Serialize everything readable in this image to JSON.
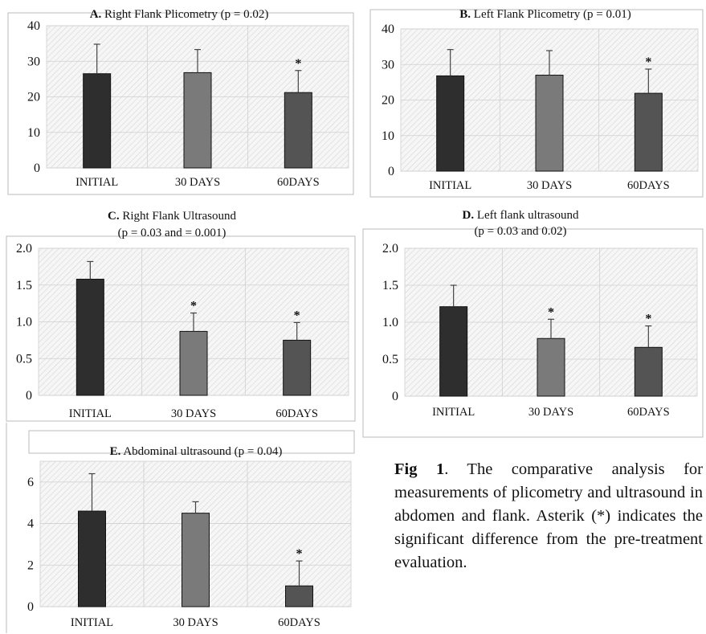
{
  "chart_data": [
    {
      "type": "bar",
      "title_bold": "A.",
      "title_text": " Right Flank Plicometry (p = 0.02)",
      "categories": [
        "INITIAL",
        "30 DAYS",
        "60DAYS"
      ],
      "values": [
        26.5,
        26.8,
        21.2
      ],
      "errors": [
        8.3,
        6.5,
        6.2
      ],
      "significant": [
        false,
        false,
        true
      ],
      "ylim": [
        0,
        40
      ],
      "yticks": [
        "0",
        "10",
        "20",
        "30",
        "40"
      ],
      "ytick_values": [
        0,
        10,
        20,
        30,
        40
      ],
      "grid": true,
      "colors": [
        "#2e2e2e",
        "#7a7a7a",
        "#545454"
      ]
    },
    {
      "type": "bar",
      "title_bold": "B.",
      "title_text": " Left Flank Plicometry (p = 0.01)",
      "categories": [
        "INITIAL",
        "30 DAYS",
        "60DAYS"
      ],
      "values": [
        26.8,
        27.0,
        21.9
      ],
      "errors": [
        7.4,
        6.9,
        6.8
      ],
      "significant": [
        false,
        false,
        true
      ],
      "ylim": [
        0,
        40
      ],
      "yticks": [
        "0",
        "10",
        "20",
        "30",
        "40"
      ],
      "ytick_values": [
        0,
        10,
        20,
        30,
        40
      ],
      "grid": true,
      "colors": [
        "#2e2e2e",
        "#7a7a7a",
        "#545454"
      ]
    },
    {
      "type": "bar",
      "title_bold": "C.",
      "title_text": " Right Flank Ultrasound",
      "title_line2": "(p = 0.03 and = 0.001)",
      "categories": [
        "INITIAL",
        "30 DAYS",
        "60DAYS"
      ],
      "values": [
        1.58,
        0.87,
        0.75
      ],
      "errors": [
        0.24,
        0.25,
        0.24
      ],
      "significant": [
        false,
        true,
        true
      ],
      "ylim": [
        0,
        2.0
      ],
      "yticks": [
        "0",
        "0.5",
        "1.0",
        "1.5",
        "2.0"
      ],
      "ytick_values": [
        0,
        0.5,
        1.0,
        1.5,
        2.0
      ],
      "grid": true,
      "colors": [
        "#2e2e2e",
        "#7a7a7a",
        "#545454"
      ]
    },
    {
      "type": "bar",
      "title_bold": "D.",
      "title_text": " Left flank ultrasound",
      "title_line2": "(p = 0.03 and 0.02)",
      "categories": [
        "INITIAL",
        "30 DAYS",
        "60DAYS"
      ],
      "values": [
        1.21,
        0.78,
        0.66
      ],
      "errors": [
        0.29,
        0.26,
        0.29
      ],
      "significant": [
        false,
        true,
        true
      ],
      "ylim": [
        0,
        2.0
      ],
      "yticks": [
        "0",
        "0.5",
        "1.0",
        "1.5",
        "2.0"
      ],
      "ytick_values": [
        0,
        0.5,
        1.0,
        1.5,
        2.0
      ],
      "grid": true,
      "colors": [
        "#2e2e2e",
        "#7a7a7a",
        "#545454"
      ]
    },
    {
      "type": "bar",
      "title_bold": "E.",
      "title_text": " Abdominal ultrasound (p = 0.04)",
      "categories": [
        "INITIAL",
        "30 DAYS",
        "60DAYS"
      ],
      "values": [
        4.6,
        4.5,
        1.0
      ],
      "errors": [
        1.8,
        0.55,
        1.2
      ],
      "significant": [
        false,
        false,
        true
      ],
      "ylim": [
        0,
        7
      ],
      "yticks": [
        "0",
        "2",
        "4",
        "6"
      ],
      "ytick_values": [
        0,
        2,
        4,
        6
      ],
      "grid": true,
      "colors": [
        "#2e2e2e",
        "#7a7a7a",
        "#545454"
      ]
    }
  ],
  "caption": {
    "label": "Fig 1",
    "text": ". The comparative analysis for measurements of plicometry and ultrasound in abdomen and flank. Asterik (*) indicates the significant difference from the pre-treatment evaluation."
  }
}
